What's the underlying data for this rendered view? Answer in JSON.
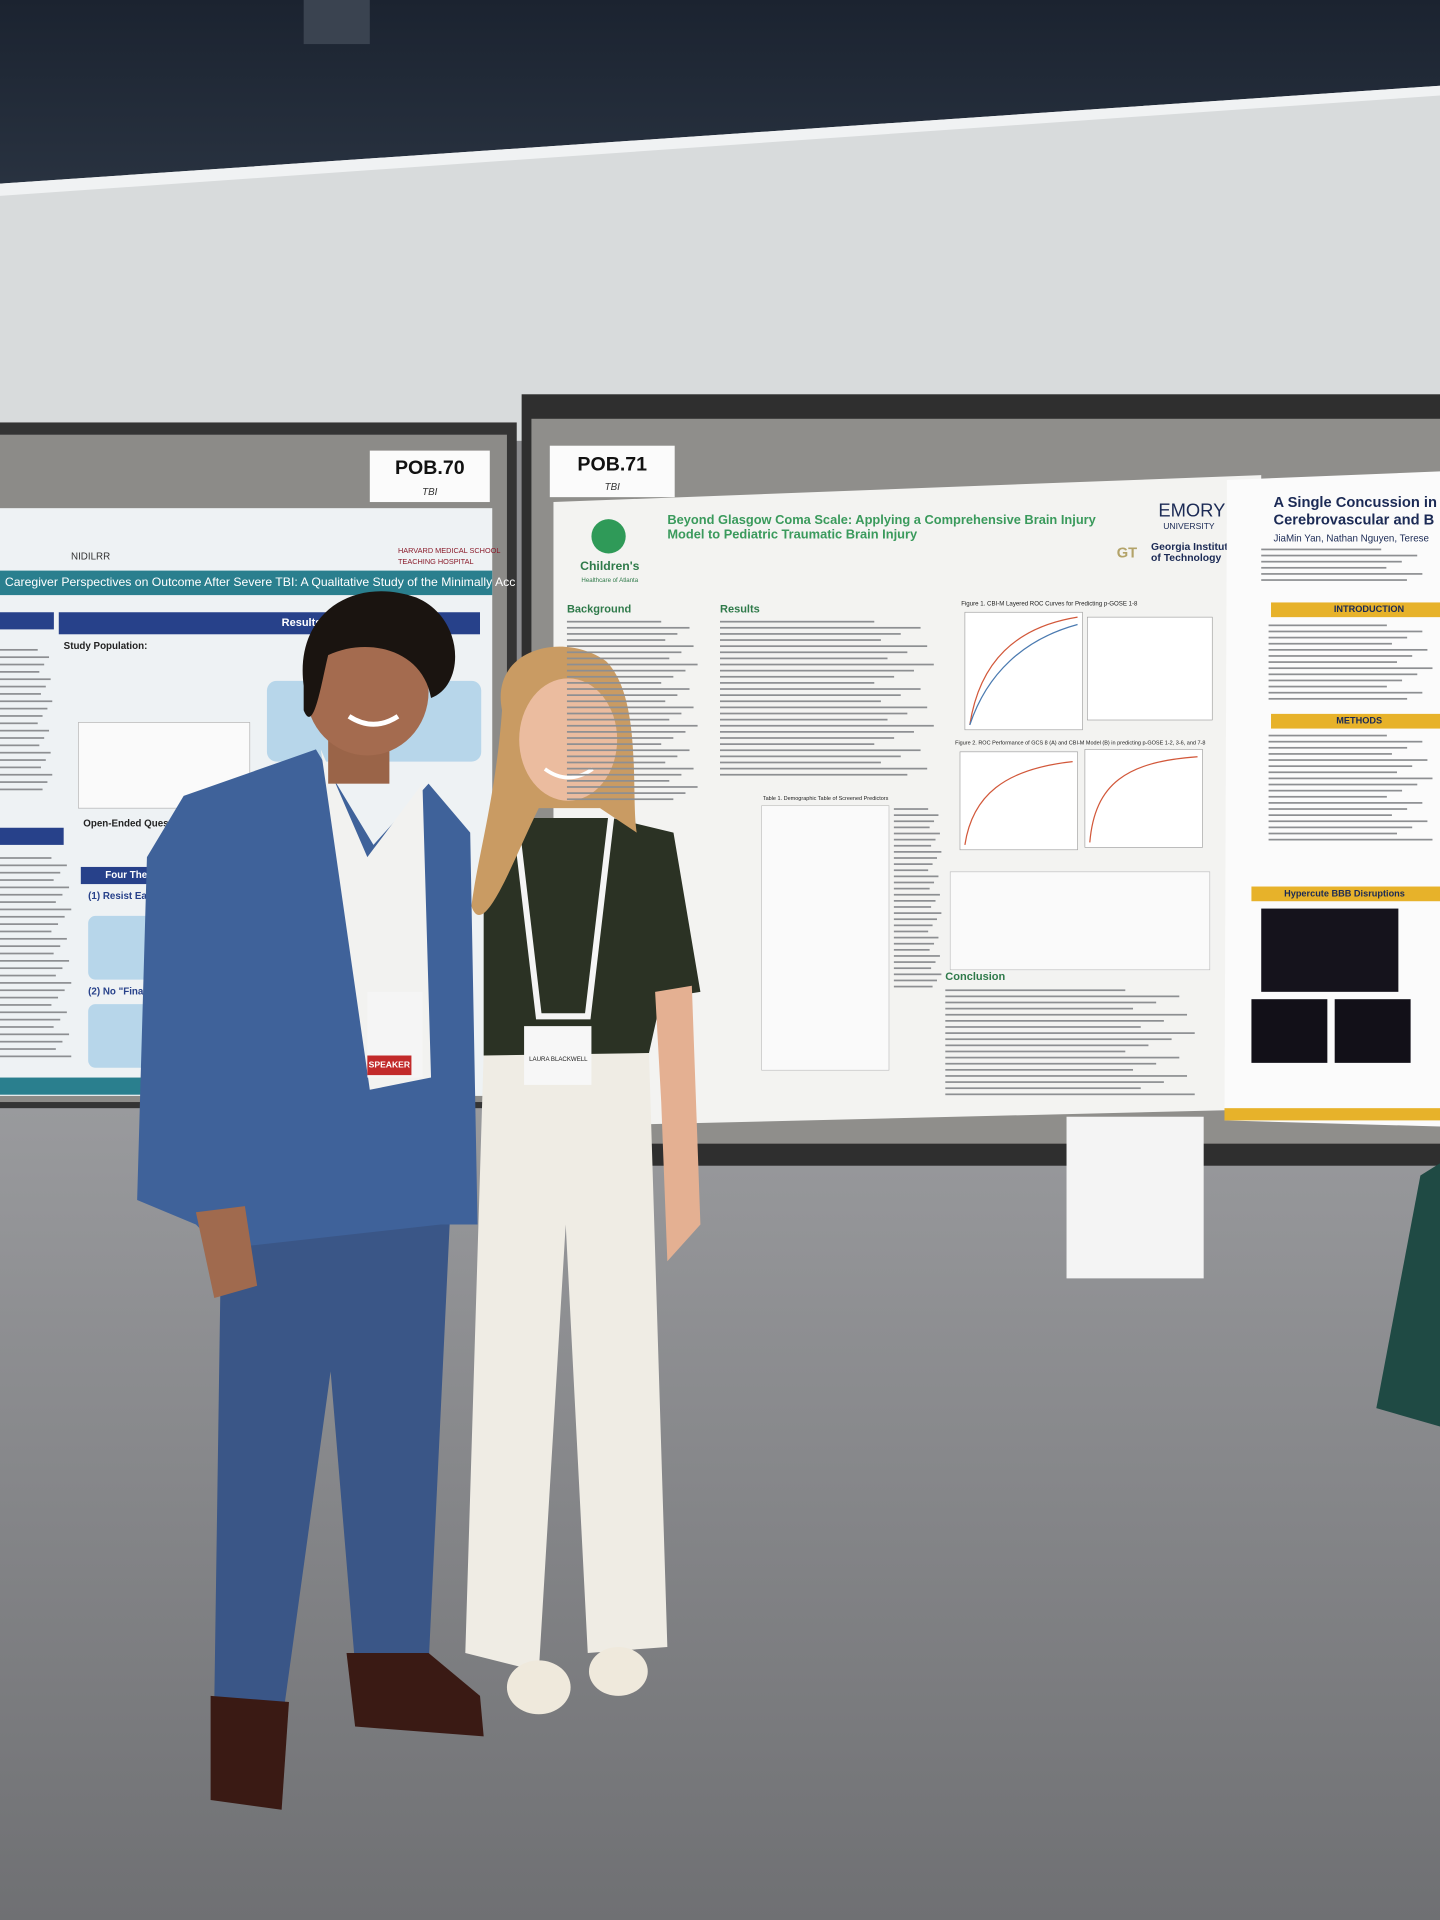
{
  "booth_labels": [
    {
      "code": "POB.70",
      "topic": "TBI"
    },
    {
      "code": "POB.71",
      "topic": "TBI"
    }
  ],
  "posters": {
    "left": {
      "logos": [
        "NIDILRR",
        "HARVARD MEDICAL SCHOOL",
        "TEACHING HOSPITAL"
      ],
      "title": "Caregiver Perspectives on Outcome After Severe TBI: A Qualitative Study of the Minimally Acc",
      "sections": [
        "Results",
        "Study Population:",
        "Open-Ended Questions:",
        "Four Themes",
        "(1) Resist Early Deci",
        "(2) No \"Final\""
      ]
    },
    "middle": {
      "title_lines": [
        "Beyond Glasgow Coma Scale: Applying a Comprehensive Brain Injury",
        "Model to Pediatric Traumatic Brain Injury"
      ],
      "logos": [
        "Children's",
        "Healthcare of Atlanta",
        "EMORY",
        "UNIVERSITY",
        "Georgia Institute",
        "of Technology"
      ],
      "sections": [
        "Background",
        "Results",
        "Conclusion"
      ],
      "captions": [
        "Figure 1. CBI-M Layered ROC Curves for Predicting p-GOSE 1-8",
        "Figure 2. ROC Performance of GCS 8 (A) and CBI-M Model (B) in predicting p-GOSE 1-2, 3-6, and 7-8",
        "Table 1. Demographic Table of Screened Predictors"
      ]
    },
    "right": {
      "title_lines": [
        "A Single Concussion in",
        "Cerebrovascular and B"
      ],
      "authors": "JiaMin Yan, Nathan Nguyen, Terese",
      "sections": [
        "INTRODUCTION",
        "METHODS",
        "Hypercute BBB Disruptions"
      ]
    }
  },
  "badges": {
    "woman": "LAURA BLACKWELL",
    "man": "SPEAKER"
  }
}
